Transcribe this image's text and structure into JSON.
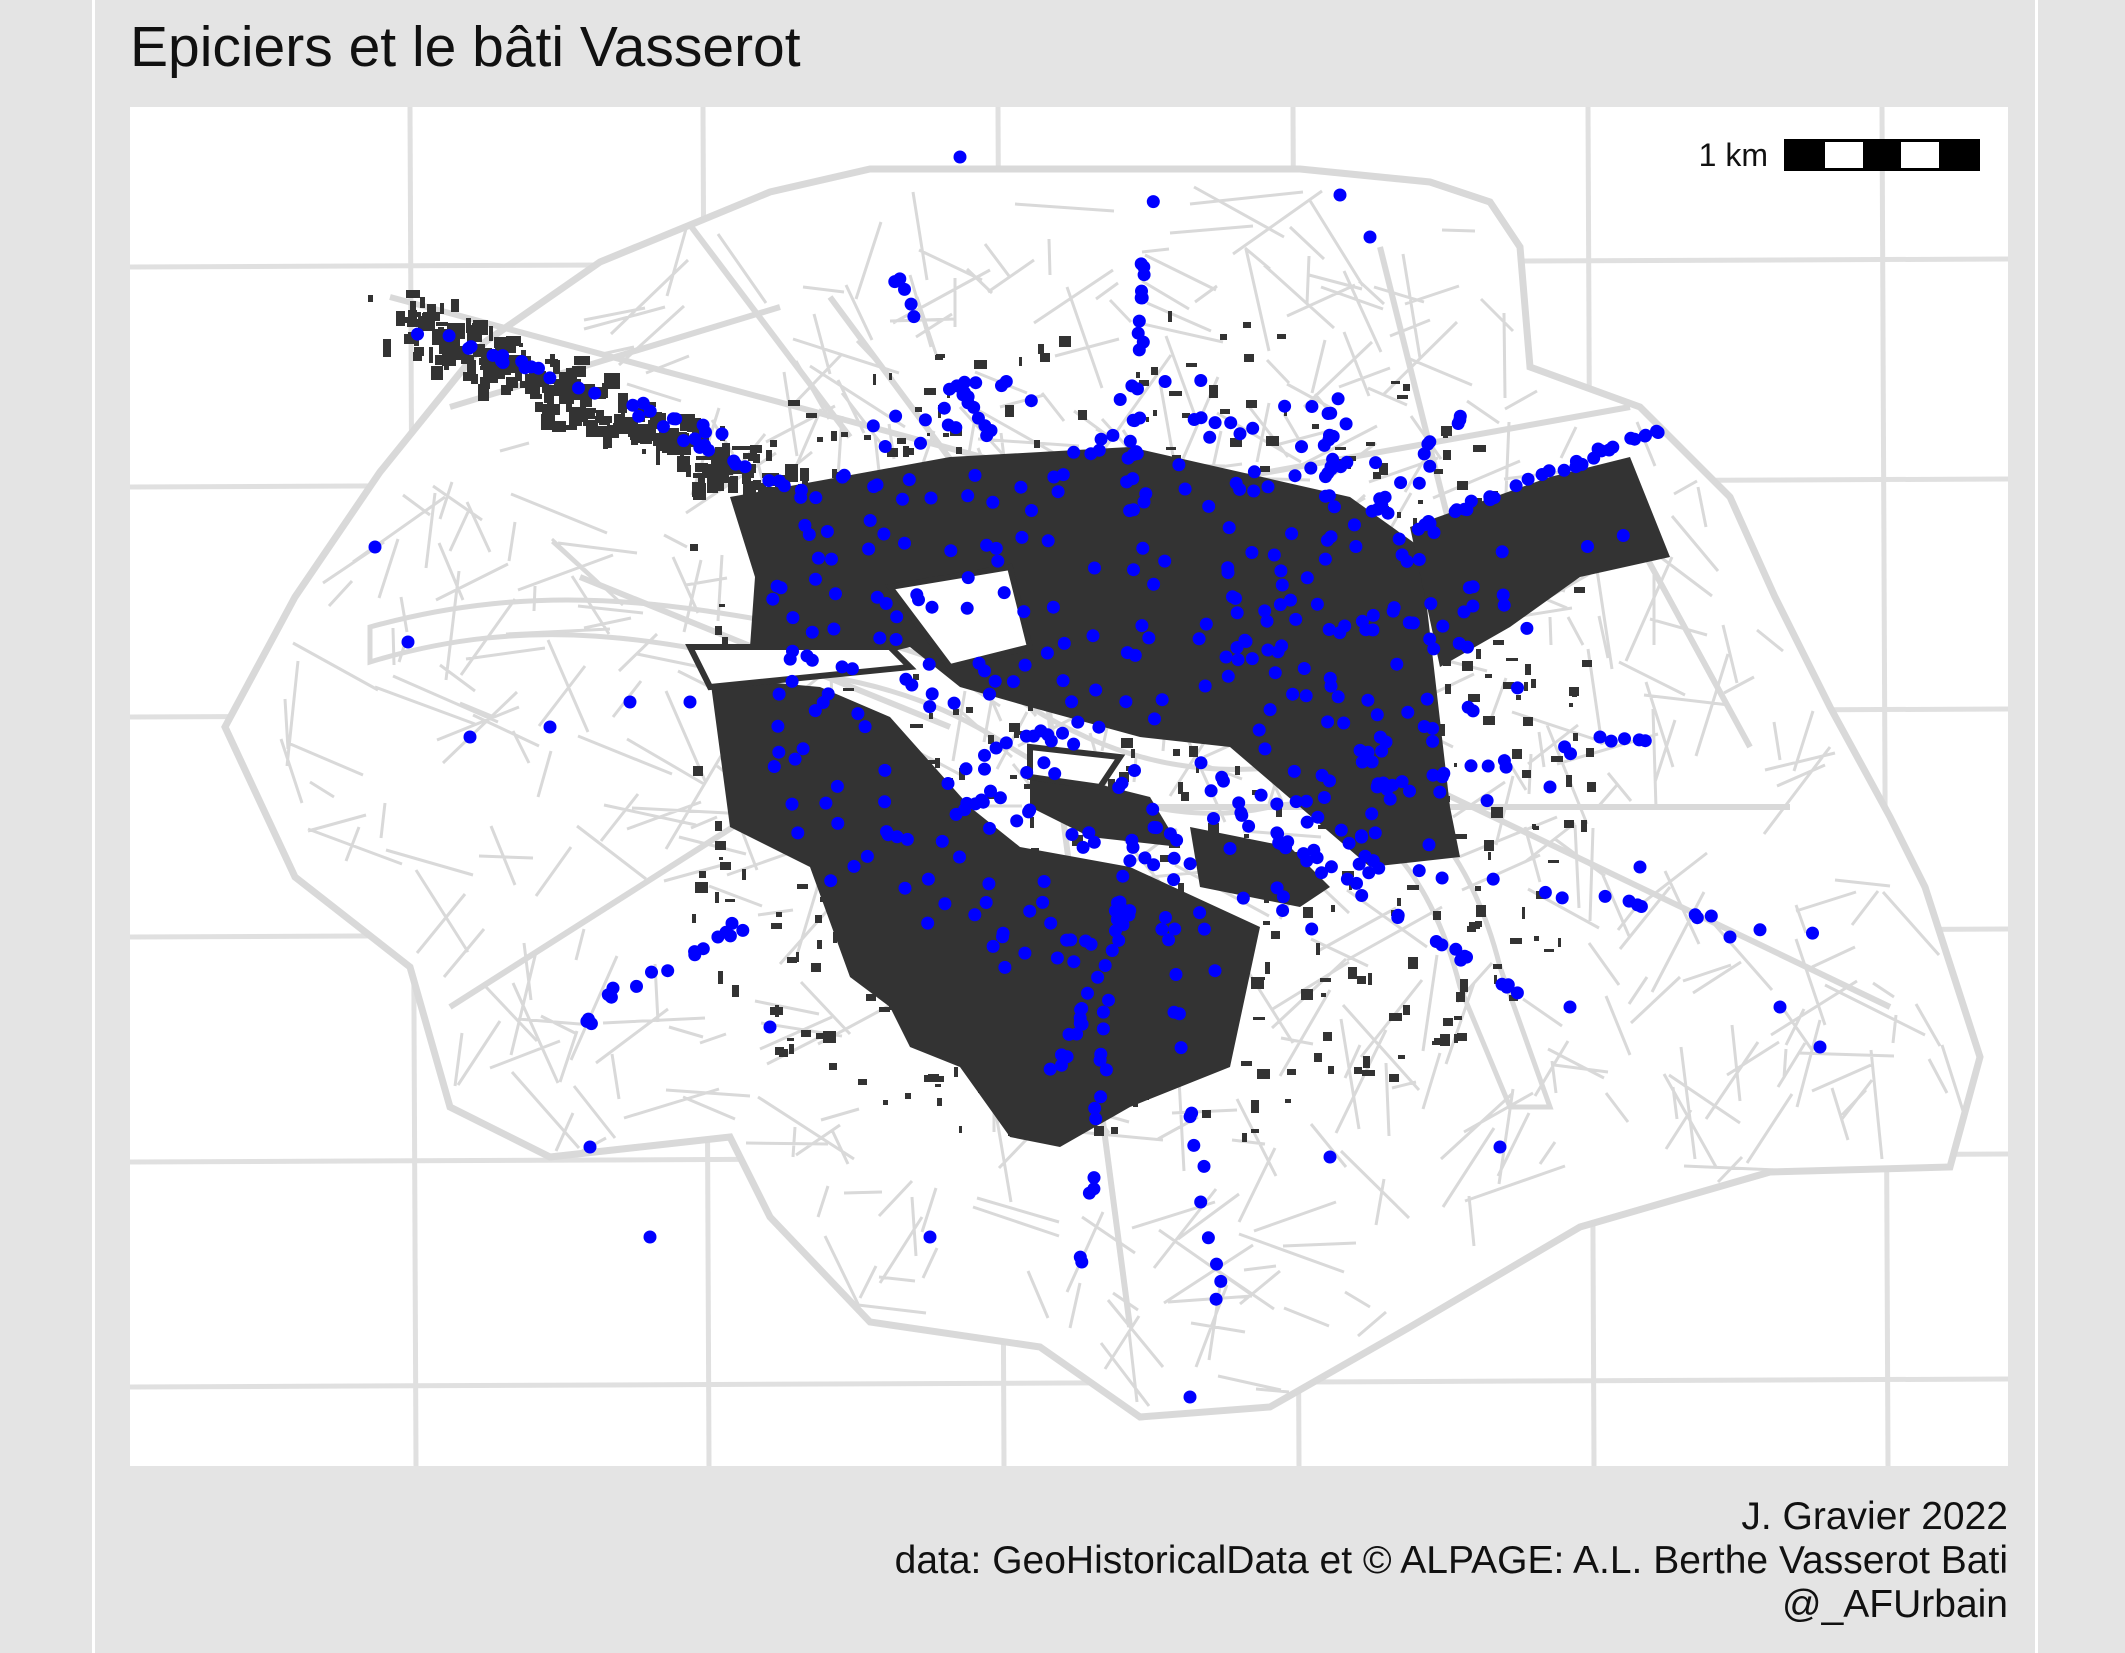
{
  "title": "Epiciers et le bâti Vasserot",
  "scalebar": {
    "label": "1 km"
  },
  "caption": {
    "author": "J. Gravier 2022",
    "data_source": "data: GeoHistoricalData et © ALPAGE: A.L. Berthe Vasserot Bati",
    "handle": "@_AFUrbain"
  },
  "colors": {
    "background": "#e4e4e4",
    "panel": "#ffffff",
    "graticule": "#e0e0e0",
    "streets": "#d9d9d9",
    "buildings": "#333333",
    "epiciers": "#0000ff"
  },
  "layers": [
    {
      "name": "graticule",
      "symbol": "light grey grid lines"
    },
    {
      "name": "streets",
      "symbol": "light grey street network of Paris"
    },
    {
      "name": "bati-vasserot",
      "symbol": "dark grey building footprints"
    },
    {
      "name": "epiciers",
      "symbol": "blue dots"
    }
  ]
}
